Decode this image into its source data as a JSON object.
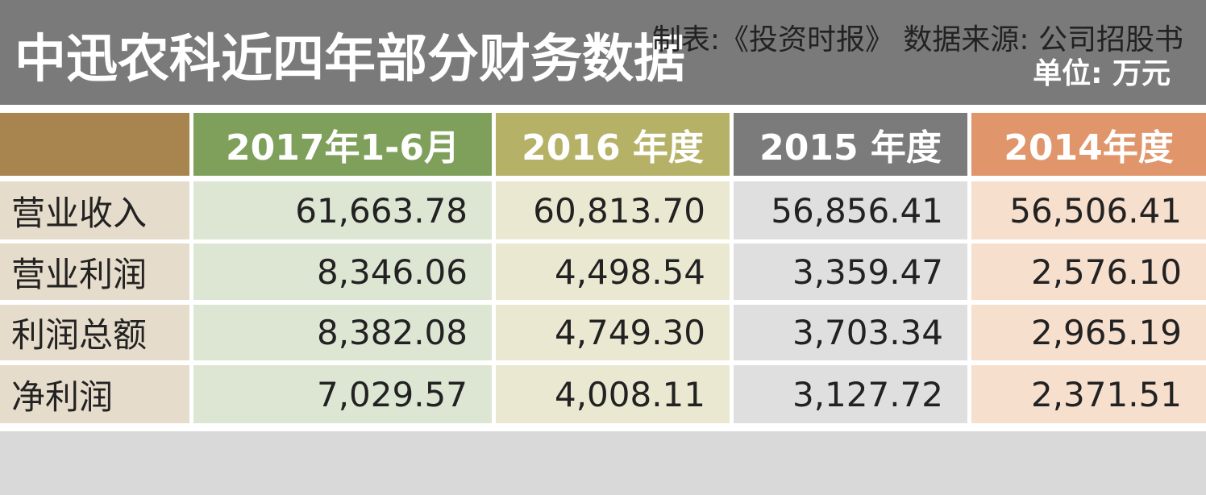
{
  "header": {
    "title": "中迅农科近四年部分财务数据",
    "unit": "单位: 万元"
  },
  "table": {
    "columns": [
      "2017年1-6月",
      "2016 年度",
      "2015 年度",
      "2014年度"
    ],
    "rows": [
      {
        "label": "营业收入",
        "values": [
          "61,663.78",
          "60,813.70",
          "56,856.41",
          "56,506.41"
        ]
      },
      {
        "label": "营业利润",
        "values": [
          "8,346.06",
          "4,498.54",
          "3,359.47",
          "2,576.10"
        ]
      },
      {
        "label": "利润总额",
        "values": [
          "8,382.08",
          "4,749.30",
          "3,703.34",
          "2,965.19"
        ]
      },
      {
        "label": "净利润",
        "values": [
          "7,029.57",
          "4,008.11",
          "3,127.72",
          "2,371.51"
        ]
      }
    ]
  },
  "footer": {
    "text": "制表:《投资时报》 数据来源: 公司招股书"
  }
}
